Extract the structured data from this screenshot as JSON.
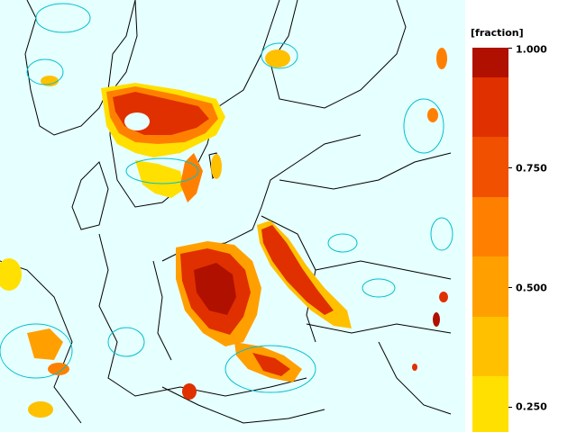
{
  "map": {
    "background_color": "#e6ffff",
    "land_color": "#e6ffff",
    "border_color": "#000000",
    "contour_color": "#00c0d0"
  },
  "legend": {
    "unit": "[fraction]",
    "colors": [
      "#ffff80",
      "#ffe000",
      "#ffc000",
      "#ffa000",
      "#ff8000",
      "#f05000",
      "#e03000",
      "#b01000"
    ],
    "tick_labels": [
      "1.000",
      "0.750",
      "0.500",
      "0.250"
    ]
  }
}
